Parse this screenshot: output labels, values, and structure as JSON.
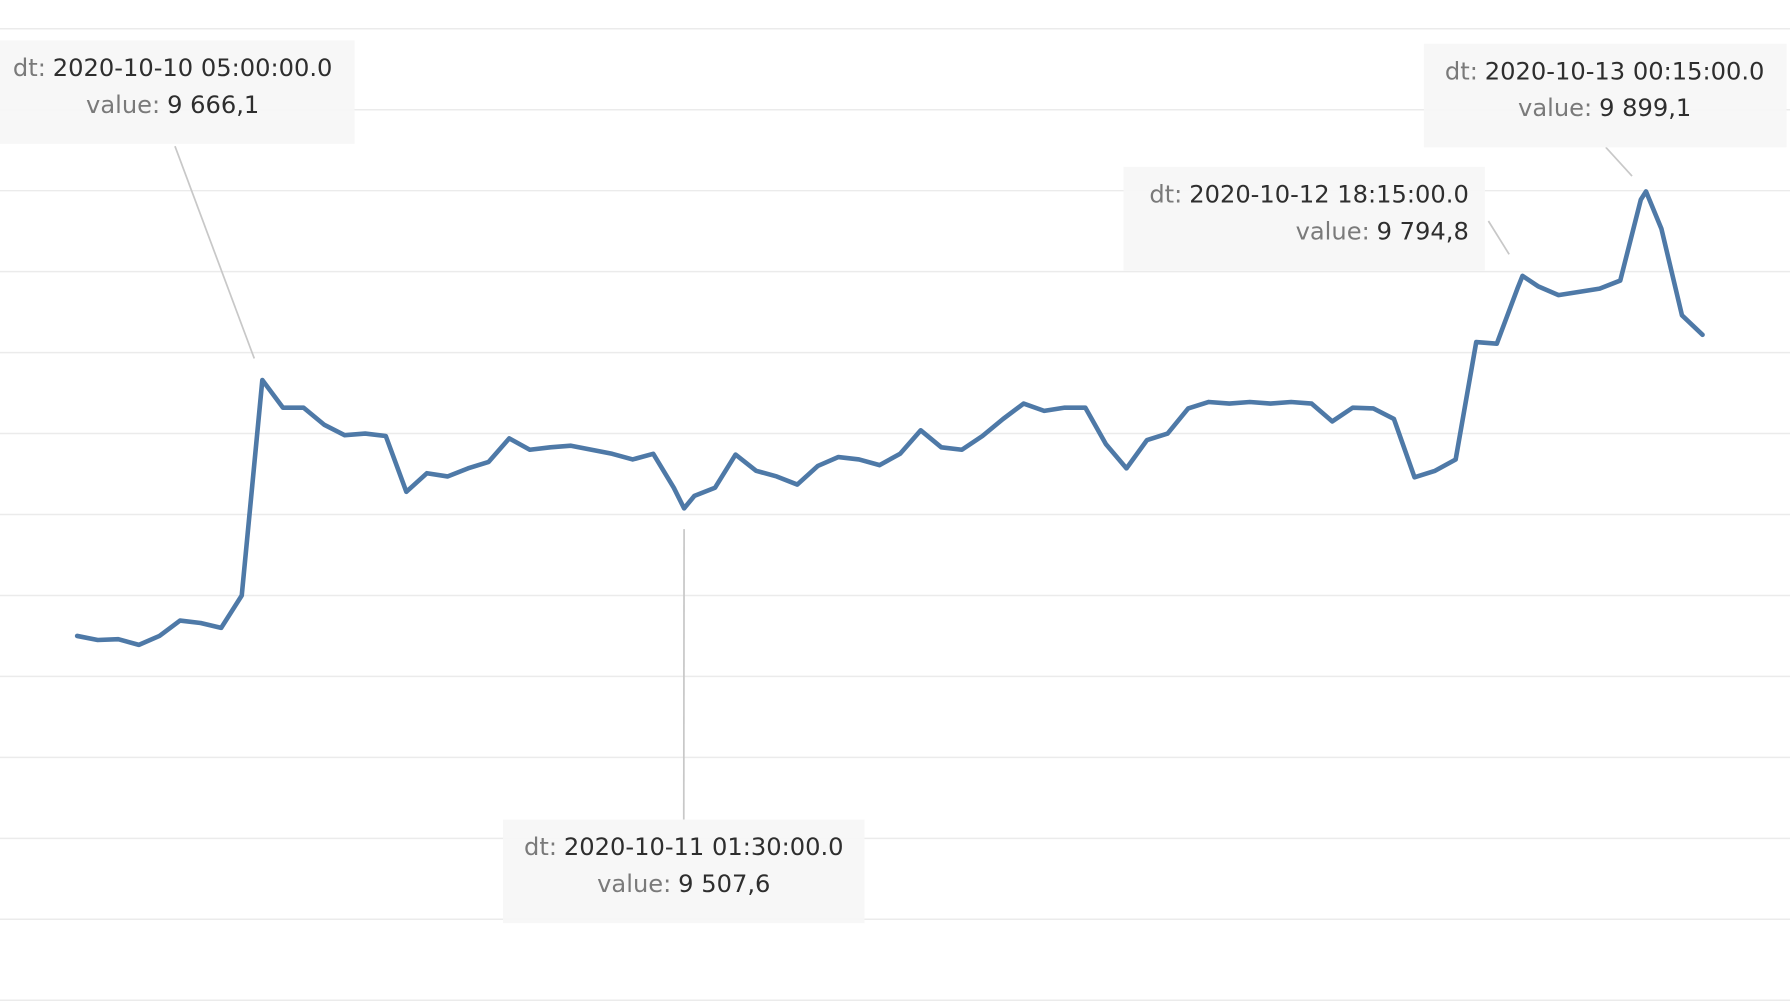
{
  "chart_data": {
    "type": "line",
    "color": "#4e79a7",
    "grid": true,
    "xlim": [
      "2020-10-09 16:15",
      "2020-10-13 07:15"
    ],
    "ylim": [
      8900,
      10100
    ],
    "yticks": [
      8900,
      9000,
      9100,
      9200,
      9300,
      9400,
      9500,
      9600,
      9700,
      9800,
      9900,
      10000,
      10100
    ],
    "tooltip_fields": [
      "dt:",
      "value:"
    ],
    "x": [
      "2020-10-09 20:00",
      "2020-10-09 21:00",
      "2020-10-09 22:00",
      "2020-10-09 23:00",
      "2020-10-10 00:00",
      "2020-10-10 01:00",
      "2020-10-10 02:00",
      "2020-10-10 03:00",
      "2020-10-10 04:00",
      "2020-10-10 05:00",
      "2020-10-10 06:00",
      "2020-10-10 07:00",
      "2020-10-10 08:00",
      "2020-10-10 09:00",
      "2020-10-10 10:00",
      "2020-10-10 11:00",
      "2020-10-10 12:00",
      "2020-10-10 13:00",
      "2020-10-10 14:00",
      "2020-10-10 15:00",
      "2020-10-10 16:00",
      "2020-10-10 17:00",
      "2020-10-10 18:00",
      "2020-10-10 19:00",
      "2020-10-10 20:00",
      "2020-10-10 21:00",
      "2020-10-10 22:00",
      "2020-10-10 23:00",
      "2020-10-11 00:00",
      "2020-10-11 01:00",
      "2020-10-11 01:30",
      "2020-10-11 02:00",
      "2020-10-11 03:00",
      "2020-10-11 04:00",
      "2020-10-11 05:00",
      "2020-10-11 06:00",
      "2020-10-11 07:00",
      "2020-10-11 08:00",
      "2020-10-11 09:00",
      "2020-10-11 10:00",
      "2020-10-11 11:00",
      "2020-10-11 12:00",
      "2020-10-11 13:00",
      "2020-10-11 14:00",
      "2020-10-11 15:00",
      "2020-10-11 16:00",
      "2020-10-11 17:00",
      "2020-10-11 18:00",
      "2020-10-11 19:00",
      "2020-10-11 20:00",
      "2020-10-11 21:00",
      "2020-10-11 22:00",
      "2020-10-11 23:00",
      "2020-10-12 00:00",
      "2020-10-12 01:00",
      "2020-10-12 02:00",
      "2020-10-12 03:00",
      "2020-10-12 04:00",
      "2020-10-12 05:00",
      "2020-10-12 06:00",
      "2020-10-12 07:00",
      "2020-10-12 08:00",
      "2020-10-12 09:00",
      "2020-10-12 10:00",
      "2020-10-12 11:00",
      "2020-10-12 12:00",
      "2020-10-12 13:00",
      "2020-10-12 14:00",
      "2020-10-12 15:00",
      "2020-10-12 16:00",
      "2020-10-12 17:00",
      "2020-10-12 18:00",
      "2020-10-12 18:15",
      "2020-10-12 19:00",
      "2020-10-12 20:00",
      "2020-10-12 21:00",
      "2020-10-12 22:00",
      "2020-10-12 23:00",
      "2020-10-13 00:00",
      "2020-10-13 00:15",
      "2020-10-13 01:00",
      "2020-10-13 02:00",
      "2020-10-13 03:00"
    ],
    "values": [
      9350,
      9345,
      9346,
      9339,
      9350,
      9369,
      9366,
      9360,
      9400,
      9666.1,
      9632,
      9632,
      9611,
      9598,
      9600,
      9597,
      9528,
      9551,
      9547,
      9557,
      9565,
      9594,
      9580,
      9583,
      9585,
      9580,
      9575,
      9568,
      9575,
      9533,
      9507.6,
      9523,
      9533,
      9574,
      9554,
      9547,
      9537,
      9560,
      9571,
      9568,
      9561,
      9575,
      9604,
      9583,
      9580,
      9597,
      9618,
      9637,
      9628,
      9632,
      9632,
      9587,
      9557,
      9592,
      9600,
      9631,
      9639,
      9637,
      9639,
      9637,
      9639,
      9637,
      9615,
      9632,
      9631,
      9618,
      9546,
      9554,
      9568,
      9713,
      9711,
      9779,
      9794.8,
      9782,
      9771,
      9775,
      9779,
      9789,
      9889,
      9899.1,
      9853,
      9746,
      9722
    ],
    "annotations": [
      {
        "dt": "2020-10-10 05:00:00.0",
        "value": 9666.1,
        "value_label": "9 666,1"
      },
      {
        "dt": "2020-10-11 01:30:00.0",
        "value": 9507.6,
        "value_label": "9 507,6"
      },
      {
        "dt": "2020-10-12 18:15:00.0",
        "value": 9794.8,
        "value_label": "9 794,8"
      },
      {
        "dt": "2020-10-13 00:15:00.0",
        "value": 9899.1,
        "value_label": "9 899,1"
      }
    ]
  }
}
